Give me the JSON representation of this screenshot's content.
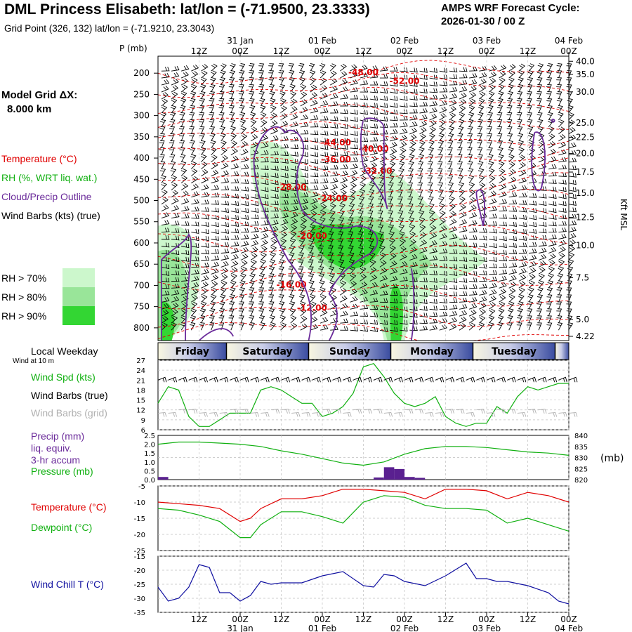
{
  "header": {
    "title": "DML Princess Elisabeth:  lat/lon = (-71.9500, 23.3333)",
    "subtitle": "Grid Point (326, 132) lat/lon = (-71.9210, 23.3043)",
    "cycle_line1": "AMPS WRF Forecast Cycle:",
    "cycle_line2": "2026-01-30 / 00  Z"
  },
  "left_panel": {
    "model_grid_line1": "Model Grid ΔX:",
    "model_grid_line2": "8.000 km",
    "legend_temperature": "Temperature (°C)",
    "legend_rh": "RH (%, WRT liq. wat.)",
    "legend_cloud": "Cloud/Precip Outline",
    "legend_wind": "Wind Barbs (kts) (true)",
    "rh_levels": [
      "RH > 70%",
      "RH > 80%",
      "RH > 90%"
    ],
    "rh_colors": [
      "#ccf7cc",
      "#99e599",
      "#33d633"
    ],
    "local_weekday": "Local Weekday",
    "wind_at": "Wind at 10 m"
  },
  "colors": {
    "temperature": "#e00000",
    "rh_line": "#10b010",
    "cloud": "#6a2a9a",
    "wind_grid": "#b0b0b0",
    "windchill": "#1010a0",
    "precip": "#5a2090"
  },
  "chart_data": [
    {
      "type": "heatmap",
      "name_in_image": "cross-section",
      "y_title": "P (mb)",
      "y_ticks_left": [
        200,
        250,
        300,
        350,
        400,
        450,
        500,
        550,
        600,
        650,
        700,
        750,
        800
      ],
      "y_ticks_right_label": "Kft MSL",
      "y_ticks_right": [
        "40.0",
        "35.0",
        "30.0",
        "25.0",
        "22.5",
        "20.0",
        "17.5",
        "15.0",
        "12.5",
        "10.0",
        "7.5",
        "5.0",
        "4.22"
      ],
      "y_ticks_right_p": [
        172,
        203,
        244,
        317,
        351,
        389,
        433,
        483,
        540,
        606,
        682,
        780,
        820
      ],
      "ylim": [
        160,
        830
      ],
      "x_hours_range": [
        0,
        120
      ],
      "x_tick_hours": [
        12,
        24,
        36,
        48,
        60,
        72,
        84,
        96,
        108,
        120
      ],
      "x_tick_labels": [
        "12Z",
        "00Z",
        "12Z",
        "00Z",
        "12Z",
        "00Z",
        "12Z",
        "00Z",
        "12Z",
        "00Z"
      ],
      "date_labels": [
        {
          "hour": 24,
          "text": "31 Jan"
        },
        {
          "hour": 48,
          "text": "01 Feb"
        },
        {
          "hour": 72,
          "text": "02 Feb"
        },
        {
          "hour": 96,
          "text": "03 Feb"
        },
        {
          "hour": 120,
          "text": "04 Feb"
        }
      ],
      "temperature_labels": [
        {
          "text": "-48.00",
          "hour": 60,
          "p": 205
        },
        {
          "text": "-52.00",
          "hour": 72,
          "p": 225
        },
        {
          "text": "-44.00",
          "hour": 52,
          "p": 370
        },
        {
          "text": "-40.00",
          "hour": 63,
          "p": 385
        },
        {
          "text": "-36.00",
          "hour": 52,
          "p": 410
        },
        {
          "text": "-32.00",
          "hour": 64,
          "p": 437
        },
        {
          "text": "-28.00",
          "hour": 39,
          "p": 475
        },
        {
          "text": "-24.00",
          "hour": 51,
          "p": 502
        },
        {
          "text": "-20.00",
          "hour": 45,
          "p": 590
        },
        {
          "text": "-16.00",
          "hour": 39,
          "p": 705
        },
        {
          "text": "-12.00",
          "hour": 45,
          "p": 760
        }
      ],
      "weekdays": [
        "Friday",
        "Saturday",
        "Sunday",
        "Monday",
        "Tuesday"
      ],
      "weekday_bounds_hours": [
        -4,
        20,
        44,
        68,
        92,
        116,
        124
      ]
    },
    {
      "type": "line",
      "name_in_image": "wind",
      "y_tick_values": [
        6,
        9,
        12,
        15,
        18,
        21,
        24,
        27
      ],
      "ylim": [
        6,
        27
      ],
      "series": [
        {
          "name": "Wind Spd (kts)",
          "hours": [
            0,
            3,
            6,
            9,
            12,
            15,
            18,
            21,
            24,
            27,
            30,
            33,
            36,
            39,
            42,
            45,
            48,
            51,
            54,
            57,
            60,
            63,
            66,
            69,
            72,
            75,
            78,
            81,
            84,
            87,
            90,
            93,
            96,
            99,
            102,
            105,
            108,
            111,
            114,
            117,
            120
          ],
          "values": [
            14,
            19,
            18,
            10,
            7,
            7,
            9,
            11,
            11,
            11,
            18,
            19,
            18,
            16,
            14,
            14,
            10,
            11,
            13,
            17,
            25,
            26,
            22,
            17,
            14,
            13,
            14,
            16,
            10,
            8,
            7,
            8,
            8,
            13,
            11,
            16,
            19,
            18,
            19,
            20,
            20
          ]
        }
      ],
      "grid_wind_series_values": [
        11,
        11,
        12,
        12,
        11,
        11,
        11,
        12,
        12,
        11,
        11,
        12,
        12,
        11,
        11,
        11,
        12,
        12,
        11,
        12,
        12,
        12,
        11,
        11,
        12,
        12,
        11,
        11,
        12,
        12,
        11,
        12,
        11,
        12,
        12,
        11,
        12,
        12,
        11,
        11,
        11
      ]
    },
    {
      "type": "line",
      "name_in_image": "precip-pressure",
      "y_ticks_left": [
        "0.0",
        "0.5",
        "1.0",
        "1.5",
        "2.0",
        "2.5"
      ],
      "y_ticks_right": [
        820,
        825,
        830,
        835,
        840
      ],
      "y_right_unit": "(mb)",
      "ylim_precip": [
        0,
        2.5
      ],
      "ylim_pressure": [
        820,
        840
      ],
      "series": [
        {
          "name": "Pressure (mb)",
          "hours": [
            0,
            6,
            12,
            18,
            24,
            30,
            36,
            42,
            48,
            54,
            60,
            66,
            72,
            78,
            84,
            90,
            96,
            102,
            108,
            114,
            120
          ],
          "values": [
            836,
            837,
            837,
            836.5,
            836,
            835,
            833,
            831.5,
            829.5,
            827.5,
            826.5,
            828,
            831.5,
            834,
            835,
            835,
            834.5,
            833.5,
            832.5,
            832,
            831
          ]
        },
        {
          "name": "Precip (mm) liq. equiv. 3-hr accum",
          "hours": [
            0,
            63,
            66,
            69,
            72,
            75
          ],
          "values": [
            0.15,
            0.12,
            0.7,
            0.6,
            0.15,
            0.1
          ]
        }
      ]
    },
    {
      "type": "line",
      "name_in_image": "temperature-dewpoint",
      "y_tick_values": [
        -5,
        -10,
        -15,
        -20,
        -25
      ],
      "ylim": [
        -25,
        -5
      ],
      "series": [
        {
          "name": "Temperature (°C)",
          "hours": [
            0,
            6,
            12,
            18,
            24,
            27,
            30,
            36,
            42,
            48,
            54,
            60,
            66,
            72,
            78,
            84,
            90,
            96,
            102,
            108,
            114,
            120
          ],
          "values": [
            -10,
            -10.5,
            -11,
            -12,
            -16,
            -15,
            -12,
            -9,
            -9,
            -8,
            -6,
            -6,
            -6.5,
            -7,
            -9,
            -6,
            -6,
            -6.5,
            -9,
            -7,
            -8,
            -10
          ]
        },
        {
          "name": "Dewpoint (°C)",
          "hours": [
            0,
            6,
            12,
            18,
            24,
            27,
            30,
            36,
            42,
            48,
            54,
            60,
            66,
            72,
            78,
            84,
            90,
            96,
            102,
            108,
            114,
            120
          ],
          "values": [
            -12,
            -12.5,
            -14,
            -16,
            -21,
            -21,
            -17,
            -13,
            -13,
            -14.5,
            -16.5,
            -10,
            -8,
            -8.5,
            -11,
            -12,
            -12,
            -12.5,
            -16.5,
            -15,
            -17,
            -19
          ]
        }
      ]
    },
    {
      "type": "line",
      "name_in_image": "wind-chill",
      "y_tick_values": [
        -15,
        -20,
        -25,
        -30,
        -35
      ],
      "ylim": [
        -35,
        -15
      ],
      "series": [
        {
          "name": "Wind Chill T (°C)",
          "hours": [
            0,
            3,
            6,
            9,
            12,
            15,
            18,
            21,
            24,
            27,
            30,
            33,
            36,
            42,
            48,
            54,
            60,
            63,
            66,
            69,
            72,
            78,
            84,
            90,
            93,
            96,
            99,
            102,
            108,
            114,
            117,
            120
          ],
          "values": [
            -26,
            -31,
            -30,
            -26,
            -18,
            -19,
            -28,
            -28,
            -31,
            -29,
            -24,
            -25,
            -24.5,
            -24.5,
            -22,
            -20.5,
            -25.5,
            -26,
            -21.5,
            -22,
            -24,
            -25.5,
            -22,
            -17.5,
            -23,
            -23,
            -24,
            -24,
            -25.5,
            -28,
            -31,
            -32
          ]
        }
      ]
    }
  ]
}
